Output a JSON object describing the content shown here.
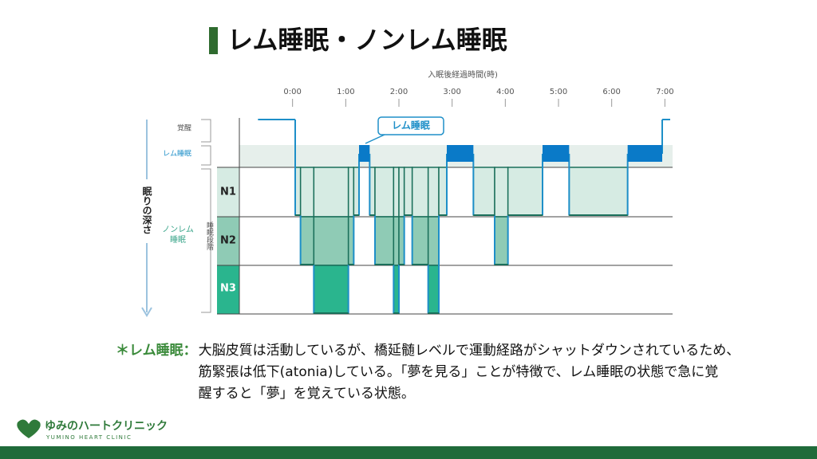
{
  "title": "レム睡眠・ノンレム睡眠",
  "chart_data": {
    "type": "step",
    "x_label": "入眠後経過時間(時)",
    "depth_label": "眠りの深さ",
    "nrem_label": "ノンレム睡眠",
    "stage_group_label": "睡眠段階",
    "callout": "レム睡眠",
    "xlim": [
      -1,
      7.1
    ],
    "xticks": [
      {
        "value": 0,
        "label": "0:00"
      },
      {
        "value": 1,
        "label": "1:00"
      },
      {
        "value": 2,
        "label": "2:00"
      },
      {
        "value": 3,
        "label": "3:00"
      },
      {
        "value": 4,
        "label": "4:00"
      },
      {
        "value": 5,
        "label": "5:00"
      },
      {
        "value": 6,
        "label": "6:00"
      },
      {
        "value": 7,
        "label": "7:00"
      }
    ],
    "ylim": [
      0,
      4
    ],
    "yticks": [
      {
        "value": 0,
        "label": "覚醒"
      },
      {
        "value": 1,
        "label": "レム睡眠"
      },
      {
        "value": 2,
        "label": "N1"
      },
      {
        "value": 3,
        "label": "N2"
      },
      {
        "value": 4,
        "label": "N3"
      }
    ],
    "x": [
      -0.65,
      0.05,
      0.15,
      0.4,
      1.05,
      1.15,
      1.25,
      1.45,
      1.55,
      1.9,
      2.0,
      2.1,
      2.25,
      2.55,
      2.75,
      2.9,
      3.4,
      3.8,
      4.05,
      4.7,
      5.2,
      6.3,
      6.95
    ],
    "values": [
      0,
      2,
      3,
      4,
      3,
      2,
      1,
      2,
      3,
      4,
      3,
      2,
      3,
      4,
      2,
      1,
      2,
      3,
      2,
      1,
      2,
      1,
      0
    ]
  },
  "note": {
    "label": "＊レム睡眠：",
    "lines": [
      "大脳皮質は活動しているが、橋延髄レベルで運動経路がシャットダウンされているため、",
      "筋緊張は低下(atonia)している。「夢を見る」ことが特徴で、レム睡眠の状態で急に覚",
      "醒すると「夢」を覚えている状態。"
    ]
  },
  "logo": {
    "name": "ゆみのハートクリニック",
    "sub": "YUMINO HEART CLINIC"
  }
}
